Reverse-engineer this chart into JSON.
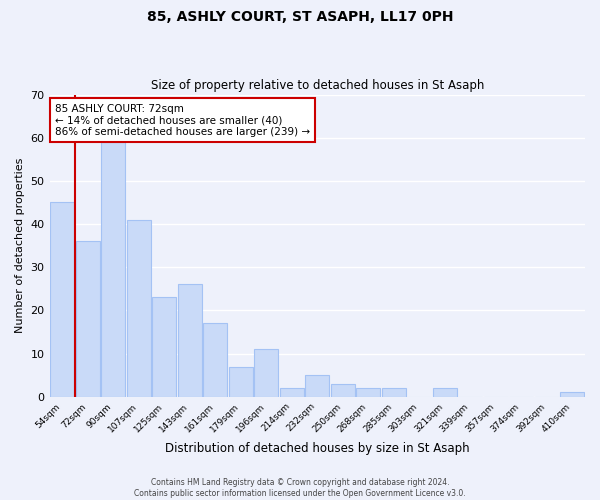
{
  "title": "85, ASHLY COURT, ST ASAPH, LL17 0PH",
  "subtitle": "Size of property relative to detached houses in St Asaph",
  "xlabel": "Distribution of detached houses by size in St Asaph",
  "ylabel": "Number of detached properties",
  "bar_labels": [
    "54sqm",
    "72sqm",
    "90sqm",
    "107sqm",
    "125sqm",
    "143sqm",
    "161sqm",
    "179sqm",
    "196sqm",
    "214sqm",
    "232sqm",
    "250sqm",
    "268sqm",
    "285sqm",
    "303sqm",
    "321sqm",
    "339sqm",
    "357sqm",
    "374sqm",
    "392sqm",
    "410sqm"
  ],
  "bar_values": [
    45,
    36,
    59,
    41,
    23,
    26,
    17,
    7,
    11,
    2,
    5,
    3,
    2,
    2,
    0,
    2,
    0,
    0,
    0,
    0,
    1
  ],
  "bar_color": "#c9daf8",
  "bar_edge_color": "#a4c2f4",
  "annotation_title": "85 ASHLY COURT: 72sqm",
  "annotation_line1": "← 14% of detached houses are smaller (40)",
  "annotation_line2": "86% of semi-detached houses are larger (239) →",
  "annotation_box_color": "#ffffff",
  "annotation_box_edge_color": "#cc0000",
  "highlight_line_color": "#cc0000",
  "ylim": [
    0,
    70
  ],
  "yticks": [
    0,
    10,
    20,
    30,
    40,
    50,
    60,
    70
  ],
  "footer_line1": "Contains HM Land Registry data © Crown copyright and database right 2024.",
  "footer_line2": "Contains public sector information licensed under the Open Government Licence v3.0.",
  "background_color": "#eef1fb",
  "grid_color": "#ffffff"
}
